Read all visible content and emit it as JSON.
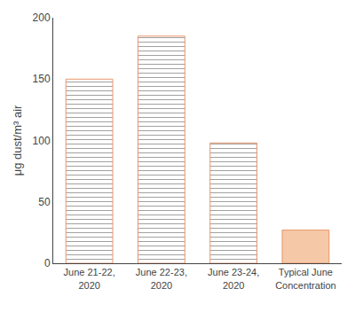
{
  "chart_data": {
    "type": "bar",
    "categories": [
      "June 21-22,\n2020",
      "June 22-23,\n2020",
      "June 23-24,\n2020",
      "Typical June\nConcentration"
    ],
    "values": [
      150,
      185,
      98,
      27
    ],
    "color": "#E8956A",
    "colors": [
      "#FFFFFF",
      "#FFFFFF",
      "#FFFFFF",
      "#F5C8A8"
    ],
    "ylabel": "μg dust/m³ air",
    "ylim": [
      0,
      200
    ],
    "yticks": [
      0,
      50,
      100,
      150,
      200
    ],
    "grid": false
  }
}
